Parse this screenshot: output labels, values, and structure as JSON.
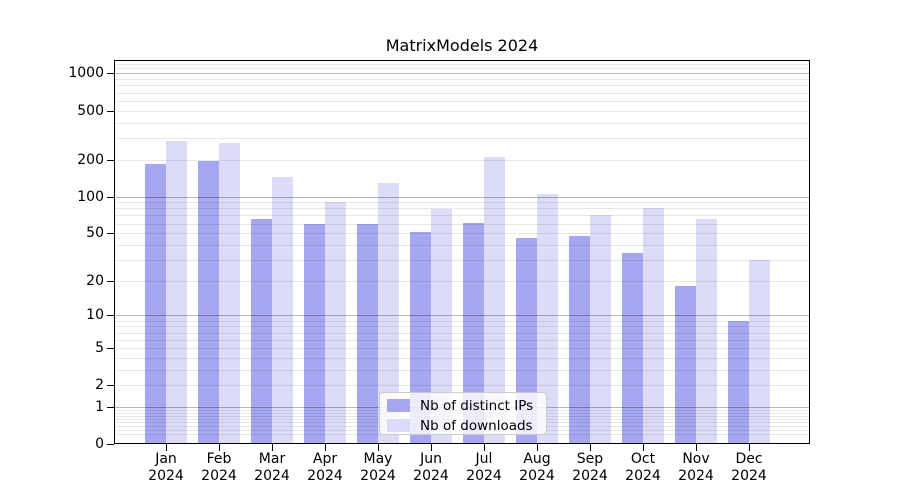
{
  "chart_data": {
    "type": "bar",
    "title": "MatrixModels 2024",
    "categories": [
      "Jan",
      "Feb",
      "Mar",
      "Apr",
      "May",
      "Jun",
      "Jul",
      "Aug",
      "Sep",
      "Oct",
      "Nov",
      "Dec"
    ],
    "x_year_line": "2024",
    "series": [
      {
        "name": "Nb of distinct IPs",
        "color": "#a6a6f1",
        "values": [
          185,
          195,
          66,
          59,
          60,
          51,
          61,
          46,
          47,
          34,
          18,
          9
        ]
      },
      {
        "name": "Nb of downloads",
        "color": "#dcdcf8",
        "values": [
          285,
          275,
          145,
          90,
          128,
          79,
          210,
          105,
          71,
          81,
          66,
          30
        ]
      }
    ],
    "xlabel": "",
    "ylabel": "",
    "yscale": "log1p",
    "y_tick_labels": [
      0,
      1,
      2,
      5,
      10,
      20,
      50,
      100,
      200,
      500,
      1000
    ],
    "y_major_grid": [
      1,
      10,
      100,
      1000
    ],
    "grid": true,
    "legend_position": "lower center"
  },
  "colors": {
    "background": "#ffffff",
    "spine": "#000000",
    "grid_major": "rgba(0,0,0,0.28)",
    "grid_minor": "rgba(0,0,0,0.09)",
    "legend_border": "#cccccc",
    "legend_bg": "rgba(255,255,255,0.8)",
    "text": "#000000"
  }
}
